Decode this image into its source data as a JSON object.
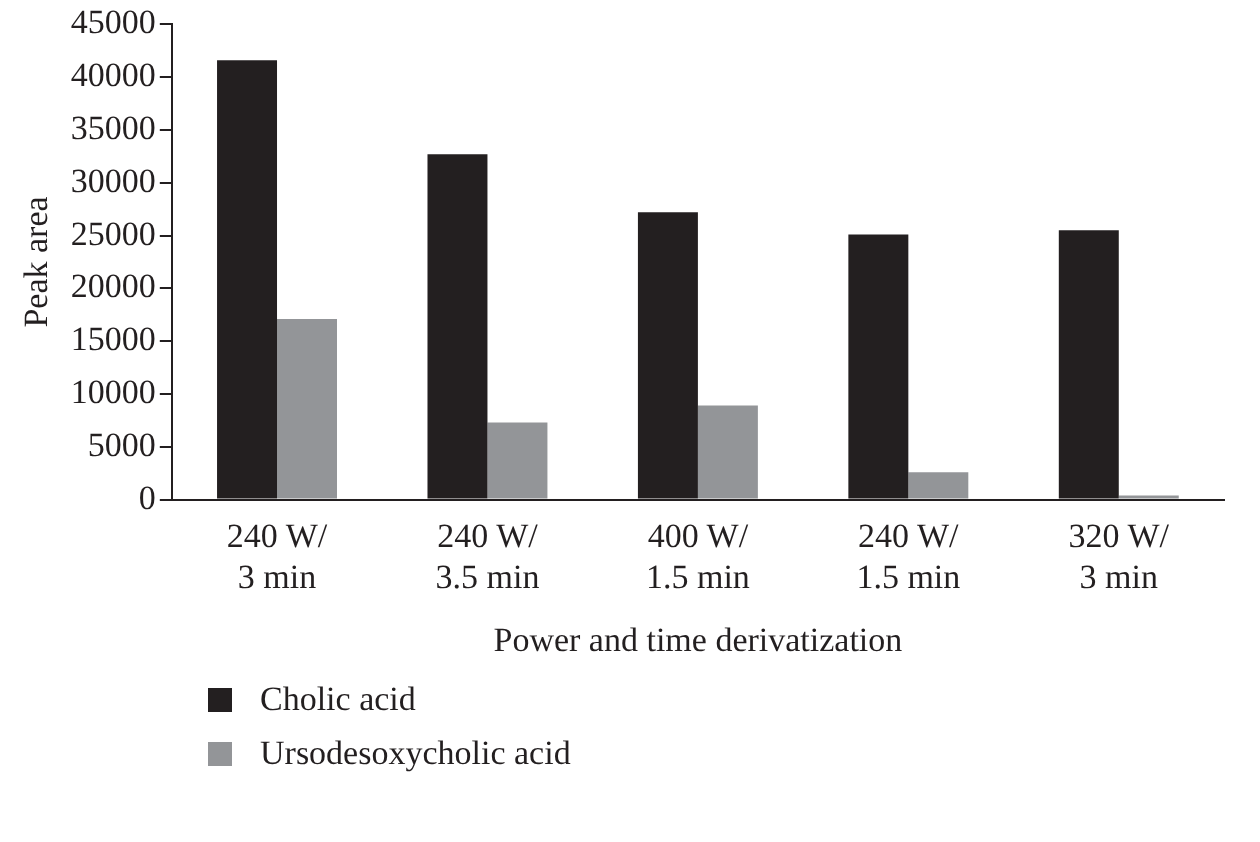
{
  "chart_data": {
    "type": "bar",
    "xlabel": "Power and time derivatization",
    "ylabel": "Peak area",
    "categories": [
      "240 W/ 3 min",
      "240 W/ 3.5 min",
      "400 W/ 1.5 min",
      "240 W/ 1.5 min",
      "320 W/ 3 min"
    ],
    "series": [
      {
        "name": "Cholic acid",
        "color": "#231f20",
        "values": [
          41600,
          32700,
          27200,
          25100,
          25500
        ]
      },
      {
        "name": "Ursodesoxycholic acid",
        "color": "#939598",
        "values": [
          17100,
          7300,
          8900,
          2600,
          400
        ]
      }
    ],
    "ylim": [
      0,
      45000
    ],
    "yticks": [
      0,
      5000,
      10000,
      15000,
      20000,
      25000,
      30000,
      35000,
      40000,
      45000
    ],
    "grid": false,
    "legend": "bottom left"
  }
}
